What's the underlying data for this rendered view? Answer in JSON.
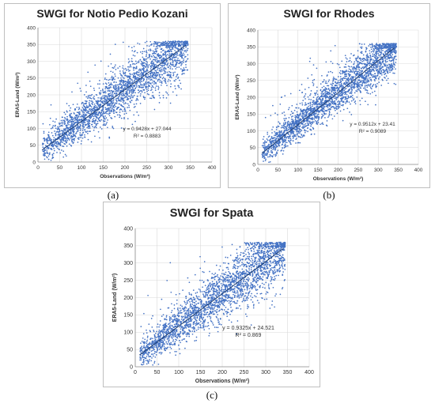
{
  "chart_data": [
    {
      "type": "scatter",
      "title": "SWGI for Notio Pedio Kozani",
      "xlabel": "Observations (W/m²)",
      "ylabel": "ERA5-Land (W/m²)",
      "xlim": [
        0,
        400
      ],
      "ylim": [
        0,
        400
      ],
      "xticks": [
        "0",
        "50",
        "100",
        "150",
        "200",
        "250",
        "300",
        "350",
        "400"
      ],
      "yticks": [
        "0",
        "50",
        "100",
        "150",
        "200",
        "250",
        "300",
        "350",
        "400"
      ],
      "grid": true,
      "trendline": {
        "slope": 0.9428,
        "intercept": 27.044,
        "r2": 0.8883
      },
      "equation_label": "y = 0.9428x + 27.044",
      "r2_label": "R² = 0.8883",
      "caption": "(a)",
      "point_color": "#4472c4",
      "line_color": "#1f3f73"
    },
    {
      "type": "scatter",
      "title": "SWGI for Rhodes",
      "xlabel": "Observations (W/m²)",
      "ylabel": "ERA5-Land (W/m²)",
      "xlim": [
        0,
        400
      ],
      "ylim": [
        0,
        400
      ],
      "xticks": [
        "0",
        "50",
        "100",
        "150",
        "200",
        "250",
        "300",
        "350",
        "400"
      ],
      "yticks": [
        "0",
        "50",
        "100",
        "150",
        "200",
        "250",
        "300",
        "350",
        "400"
      ],
      "grid": true,
      "trendline": {
        "slope": 0.9512,
        "intercept": 23.41,
        "r2": 0.9089
      },
      "equation_label": "y = 0.9512x + 23.41",
      "r2_label": "R² = 0.9089",
      "caption": "(b)",
      "point_color": "#4472c4",
      "line_color": "#1f3f73"
    },
    {
      "type": "scatter",
      "title": "SWGI for Spata",
      "xlabel": "Observations (W/m²)",
      "ylabel": "ERA5-Land (W/m²)",
      "xlim": [
        0,
        400
      ],
      "ylim": [
        0,
        400
      ],
      "xticks": [
        "0",
        "50",
        "100",
        "150",
        "200",
        "250",
        "300",
        "350",
        "400"
      ],
      "yticks": [
        "0",
        "50",
        "100",
        "150",
        "200",
        "250",
        "300",
        "350",
        "400"
      ],
      "grid": true,
      "trendline": {
        "slope": 0.9325,
        "intercept": 24.521,
        "r2": 0.869
      },
      "equation_label": "y = 0.9325x + 24.521",
      "r2_label": "R² = 0.869",
      "caption": "(c)",
      "point_color": "#4472c4",
      "line_color": "#1f3f73"
    }
  ]
}
